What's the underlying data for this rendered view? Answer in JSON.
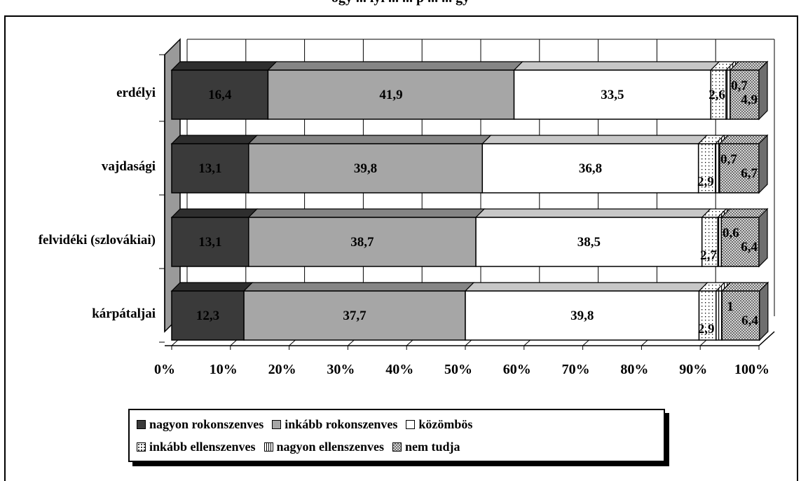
{
  "page": {
    "title_fragment": "ogy ... lyi ... ... p ... ... gy"
  },
  "chart_data": {
    "type": "bar",
    "orientation": "horizontal",
    "stacked": "100%",
    "categories": [
      "erdélyi",
      "vajdasági",
      "felvidéki (szlovákiai)",
      "kárpátaljai"
    ],
    "series": [
      {
        "name": "nagyon rokonszenves",
        "values": [
          16.4,
          13.1,
          13.1,
          12.3
        ],
        "labels": [
          "16,4",
          "13,1",
          "13,1",
          "12,3"
        ],
        "color": "#3a3a3a",
        "pattern": "solid"
      },
      {
        "name": "inkább rokonszenves",
        "values": [
          41.9,
          39.8,
          38.7,
          37.7
        ],
        "labels": [
          "41,9",
          "39,8",
          "38,7",
          "37,7"
        ],
        "color": "#a6a6a6",
        "pattern": "solid"
      },
      {
        "name": "közömbös",
        "values": [
          33.5,
          36.8,
          38.5,
          39.8
        ],
        "labels": [
          "33,5",
          "36,8",
          "38,5",
          "39,8"
        ],
        "color": "#ffffff",
        "pattern": "solid"
      },
      {
        "name": "inkább ellenszenves",
        "values": [
          2.6,
          2.9,
          2.7,
          2.9
        ],
        "labels": [
          "2,6",
          "2,9",
          "2,7",
          "2,9"
        ],
        "color": "#ffffff",
        "pattern": "dots"
      },
      {
        "name": "nagyon ellenszenves",
        "values": [
          0.7,
          0.7,
          0.6,
          1
        ],
        "labels": [
          "0,7",
          "0,7",
          "0,6",
          "1"
        ],
        "color": "#ffffff",
        "pattern": "vlines"
      },
      {
        "name": "nem tudja",
        "values": [
          4.9,
          6.7,
          6.4,
          6.4
        ],
        "labels": [
          "4,9",
          "6,7",
          "6,4",
          "6,4"
        ],
        "color": "#b0b0b0",
        "pattern": "checker"
      }
    ],
    "x_ticks": [
      "0%",
      "10%",
      "20%",
      "30%",
      "40%",
      "50%",
      "60%",
      "70%",
      "80%",
      "90%",
      "100%"
    ],
    "xlim": [
      0,
      100
    ],
    "grid": true,
    "legend_position": "bottom"
  }
}
